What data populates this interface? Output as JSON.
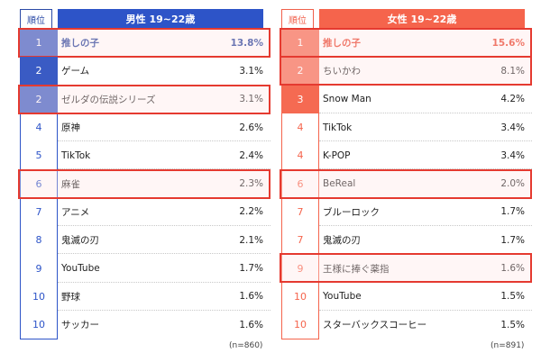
{
  "male": {
    "rank_header": "順位",
    "title": "男性 19~22歳",
    "note": "(n=860)",
    "rows": [
      {
        "rank": "1",
        "name": "推しの子",
        "pct": "13.8%",
        "filled": true,
        "highlight": true
      },
      {
        "rank": "2",
        "name": "ゲーム",
        "pct": "3.1%",
        "filled": true,
        "highlight": false
      },
      {
        "rank": "2",
        "name": "ゼルダの伝説シリーズ",
        "pct": "3.1%",
        "filled": true,
        "highlight": true
      },
      {
        "rank": "4",
        "name": "原神",
        "pct": "2.6%",
        "filled": false,
        "highlight": false
      },
      {
        "rank": "5",
        "name": "TikTok",
        "pct": "2.4%",
        "filled": false,
        "highlight": false
      },
      {
        "rank": "6",
        "name": "麻雀",
        "pct": "2.3%",
        "filled": false,
        "highlight": true
      },
      {
        "rank": "7",
        "name": "アニメ",
        "pct": "2.2%",
        "filled": false,
        "highlight": false
      },
      {
        "rank": "8",
        "name": "鬼滅の刃",
        "pct": "2.1%",
        "filled": false,
        "highlight": false
      },
      {
        "rank": "9",
        "name": "YouTube",
        "pct": "1.7%",
        "filled": false,
        "highlight": false
      },
      {
        "rank": "10",
        "name": "野球",
        "pct": "1.6%",
        "filled": false,
        "highlight": false
      },
      {
        "rank": "10",
        "name": "サッカー",
        "pct": "1.6%",
        "filled": false,
        "highlight": false
      }
    ]
  },
  "female": {
    "rank_header": "順位",
    "title": "女性 19~22歳",
    "note": "(n=891)",
    "rows": [
      {
        "rank": "1",
        "name": "推しの子",
        "pct": "15.6%",
        "filled": true,
        "highlight": true
      },
      {
        "rank": "2",
        "name": "ちいかわ",
        "pct": "8.1%",
        "filled": true,
        "highlight": true
      },
      {
        "rank": "3",
        "name": "Snow Man",
        "pct": "4.2%",
        "filled": true,
        "highlight": false
      },
      {
        "rank": "4",
        "name": "TikTok",
        "pct": "3.4%",
        "filled": false,
        "highlight": false
      },
      {
        "rank": "4",
        "name": "K-POP",
        "pct": "3.4%",
        "filled": false,
        "highlight": false
      },
      {
        "rank": "6",
        "name": "BeReal",
        "pct": "2.0%",
        "filled": false,
        "highlight": true
      },
      {
        "rank": "7",
        "name": "ブルーロック",
        "pct": "1.7%",
        "filled": false,
        "highlight": false
      },
      {
        "rank": "7",
        "name": "鬼滅の刃",
        "pct": "1.7%",
        "filled": false,
        "highlight": false
      },
      {
        "rank": "9",
        "name": "王様に捧ぐ薬指",
        "pct": "1.6%",
        "filled": false,
        "highlight": true
      },
      {
        "rank": "10",
        "name": "YouTube",
        "pct": "1.5%",
        "filled": false,
        "highlight": false
      },
      {
        "rank": "10",
        "name": "スターバックスコーヒー",
        "pct": "1.5%",
        "filled": false,
        "highlight": false
      }
    ]
  }
}
